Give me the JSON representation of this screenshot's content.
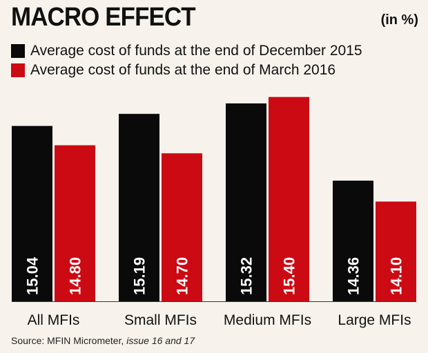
{
  "header": {
    "title": "MACRO EFFECT",
    "unit": "(in %)"
  },
  "colors": {
    "series1": "#0a0a0a",
    "series2": "#cc0a14",
    "axis": "#333333",
    "background": "#f7f3ec"
  },
  "chart_data": {
    "type": "bar",
    "title": "MACRO EFFECT",
    "ylabel": "in %",
    "xlabel": "",
    "categories": [
      "All MFIs",
      "Small MFIs",
      "Medium MFIs",
      "Large MFIs"
    ],
    "series": [
      {
        "name": "Average cost of funds at the end of December 2015",
        "values": [
          15.04,
          15.19,
          15.32,
          14.36
        ],
        "labels": [
          "15.04",
          "15.19",
          "15.32",
          "14.36"
        ]
      },
      {
        "name": "Average cost of funds at the end of March 2016",
        "values": [
          14.8,
          14.7,
          15.4,
          14.1
        ],
        "labels": [
          "14.80",
          "14.70",
          "15.40",
          "14.10"
        ]
      }
    ],
    "ylim": [
      12.86,
      15.5
    ],
    "legend": "top-left",
    "grid": false
  },
  "source": {
    "prefix": "Source: MFIN Micrometer, ",
    "italic": "issue 16 and 17"
  }
}
